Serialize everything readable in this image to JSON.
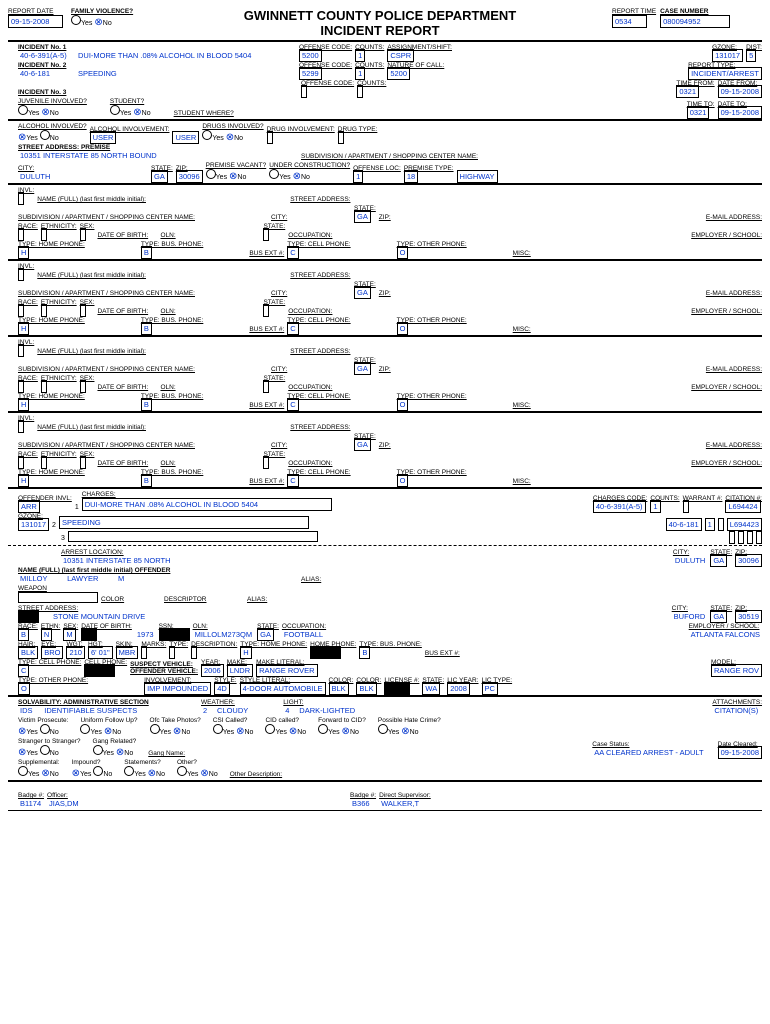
{
  "header": {
    "title1": "GWINNETT COUNTY POLICE DEPARTMENT",
    "title2": "INCIDENT REPORT",
    "report_date": "09-15-2008",
    "family_violence": "No",
    "report_time": "0534",
    "case_number": "080094952"
  },
  "inc": {
    "i1": {
      "lbl": "INCIDENT No. 1",
      "code": "40-6-391(A-5)",
      "desc": "DUI-MORE THAN .08% ALCOHOL IN BLOOD 5404",
      "off": "5200",
      "cnt": "1",
      "ass": "CSPR",
      "gz": "131017",
      "dist": "5"
    },
    "i2": {
      "lbl": "INCIDENT No. 2",
      "code": "40-6-181",
      "desc": "SPEEDING",
      "off": "5299",
      "cnt": "1",
      "nat": "5200",
      "rtype": "INCIDENT/ARREST"
    },
    "i3": {
      "lbl": "INCIDENT No. 3"
    },
    "time_from": "0321",
    "date_from": "09-15-2008",
    "time_to": "0321",
    "date_to": "09-15-2008"
  },
  "prem": {
    "addr": "10351 INTERSTATE 85 NORTH BOUND",
    "city": "DULUTH",
    "state": "GA",
    "zip": "30096",
    "offloc": "1",
    "ptype_code": "18",
    "ptype": "HIGHWAY",
    "alc_inv": "USER",
    "alc_inv2": "USER"
  },
  "invl_state": "GA",
  "phone": {
    "h": "H",
    "b": "B",
    "c": "C",
    "o": "O"
  },
  "off": {
    "invl": "ARR",
    "gz": "131017",
    "c1": {
      "desc": "DUI-MORE THAN .08% ALCOHOL IN BLOOD 5404",
      "code": "40-6-391(A-5)",
      "cnt": "1",
      "cit": "L694424"
    },
    "c2": {
      "desc": "SPEEDING",
      "code": "40-6-181",
      "cnt": "1",
      "cit": "L694423"
    },
    "arrest_loc": "10351 INTERSTATE 85 NORTH",
    "arrest_city": "DULUTH",
    "arrest_st": "GA",
    "arrest_zip": "30096",
    "name_last": "MILLOY",
    "name_first": "LAWYER",
    "name_mi": "M",
    "street": "STONE MOUNTAIN DRIVE",
    "city": "BUFORD",
    "state": "GA",
    "zip": "30519",
    "race": "B",
    "eth": "N",
    "sex": "M",
    "dob": "1973",
    "oln": "MILLOLM273QM",
    "oln_st": "GA",
    "occ": "FOOTBALL",
    "emp": "ATLANTA FALCONS",
    "hair": "BLK",
    "eye": "BRO",
    "wgt": "210",
    "hgt": "6' 01\"",
    "skin": "MBR",
    "hp_t": "H",
    "bp_t": "B",
    "cp_t": "C",
    "op_t": "O",
    "veh_year": "2006",
    "veh_make": "LNDR",
    "veh_lit": "RANGE ROVER",
    "veh_model": "RANGE ROV",
    "veh_inv": "IMP  IMPOUNDED",
    "veh_style": "4D",
    "veh_style_lit": "4-DOOR AUTOMOBILE",
    "veh_c1": "BLK",
    "veh_c2": "BLK",
    "lic_st": "WA",
    "lic_yr": "2008",
    "lic_ty": "PC"
  },
  "adm": {
    "solv": "IDS",
    "solv2": "IDENTIFIABLE SUSPECTS",
    "weather_c": "2",
    "weather": "CLOUDY",
    "light_c": "4",
    "light": "DARK-LIGHTED",
    "attach": "CITATION(S)",
    "case_status": "AA  CLEARED ARREST - ADULT",
    "date_cleared": "09-15-2008"
  },
  "ftr": {
    "badge1": "B1174",
    "officer1": "JIAS,DM",
    "badge2": "B366",
    "supervisor": "WALKER,T"
  },
  "lbls": {
    "rd": "REPORT DATE",
    "fv": "FAMILY VIOLENCE?",
    "rt": "REPORT TIME",
    "cn": "CASE NUMBER",
    "oc": "OFFENSE CODE:",
    "cnts": "COUNTS:",
    "as": "ASSIGNMENT/SHIFT:",
    "gz": "GZONE:",
    "dist": "DIST:",
    "nc": "NATURE OF CALL:",
    "rty": "REPORT TYPE:",
    "tf": "TIME FROM:",
    "df": "DATE FROM:",
    "tt": "TIME TO:",
    "dt": "DATE TO:",
    "ji": "JUVENILE INVOLVED?",
    "stu": "STUDENT?",
    "sw": "STUDENT WHERE?",
    "ai": "ALCOHOL INVOLVED?",
    "ainv": "ALCOHOL INVOLVEMENT:",
    "di": "DRUGS INVOLVED?",
    "dinv": "DRUG INVOLVEMENT:",
    "dty": "DRUG TYPE:",
    "sap": "STREET ADDRESS: PREMISE",
    "sub": "SUBDIVISION / APARTMENT / SHOPPING CENTER NAME:",
    "city": "CITY:",
    "st": "STATE:",
    "zip": "ZIP:",
    "pv": "PREMISE VACANT?",
    "uc": "UNDER CONSTRUCTION?",
    "ol": "OFFENSE LOC:",
    "pt": "PREMISE TYPE:",
    "invl": "INVL:",
    "nf": "NAME (FULL) (last first middle initial):",
    "sa": "STREET ADDRESS:",
    "em": "E-MAIL ADDRESS:",
    "race": "RACE:",
    "eth": "ETHNICITY:",
    "sex": "SEX:",
    "dob": "DATE OF BIRTH:",
    "oln": "OLN:",
    "occ": "OCCUPATION:",
    "emp": "EMPLOYER / SCHOOL:",
    "thp": "TYPE: HOME PHONE:",
    "tbp": "TYPE: BUS. PHONE:",
    "be": "BUS EXT #:",
    "tcp": "TYPE: CELL PHONE:",
    "top": "TYPE: OTHER PHONE:",
    "misc": "MISC:",
    "oi": "OFFENDER INVL:",
    "chg": "CHARGES:",
    "cc": "CHARGES CODE:",
    "war": "WARRANT #:",
    "cit": "CITATION #:",
    "al": "ARREST LOCATION:",
    "nfo": "NAME (FULL) (last first middle initial) OFFENDER",
    "alias": "ALIAS:",
    "wpn": "WEAPON",
    "clr": "COLOR",
    "dsc": "DESCRIPTOR",
    "hair": "HAIR:",
    "eye": "EYE:",
    "wgt": "WGT:",
    "hgt": "HGT:",
    "skin": "SKIN:",
    "marks": "MARKS:",
    "type": "TYPE:",
    "desc": "DESCRIPTION:",
    "ssn": "SSN:",
    "sv": "SUSPECT VEHICLE:",
    "ov": "OFFENDER  VEHICLE:",
    "yr": "YEAR:",
    "mk": "MAKE:",
    "ml": "MAKE LITERAL:",
    "mdl": "MODEL:",
    "invlv": "INVOLVEMENT:",
    "sty": "STYLE:",
    "styl": "STYLE LITERAL:",
    "col": "COLOR:",
    "lic": "LICENSE #:",
    "lyr": "LIC YEAR:",
    "lty": "LIC TYPE:",
    "solv": "SOLVABILITY:  ADMINISTRATIVE SECTION",
    "wth": "WEATHER:",
    "lgt": "LIGHT:",
    "att": "ATTACHMENTS:",
    "vp": "Victim Prosecute:",
    "uf": "Uniform Follow Up?",
    "otp": "Ofc Take Photos?",
    "csi": "CSI Called?",
    "cid": "CID called?",
    "fwc": "Forward to CID?",
    "phc": "Possible Hate Crime?",
    "s2s": "Stranger to Stranger?",
    "gr": "Gang Related?",
    "gn": "Gang Name:",
    "cs": "Case Status:",
    "dc": "Date Cleared:",
    "sup": "Supplemental:",
    "imp": "Impound?",
    "stm": "Statements?",
    "oth": "Other?",
    "od": "Other Description:",
    "bdg": "Badge #:",
    "ofc": "Officer:",
    "ds": "Direct Supervisor:",
    "y": "Yes",
    "n": "No"
  }
}
